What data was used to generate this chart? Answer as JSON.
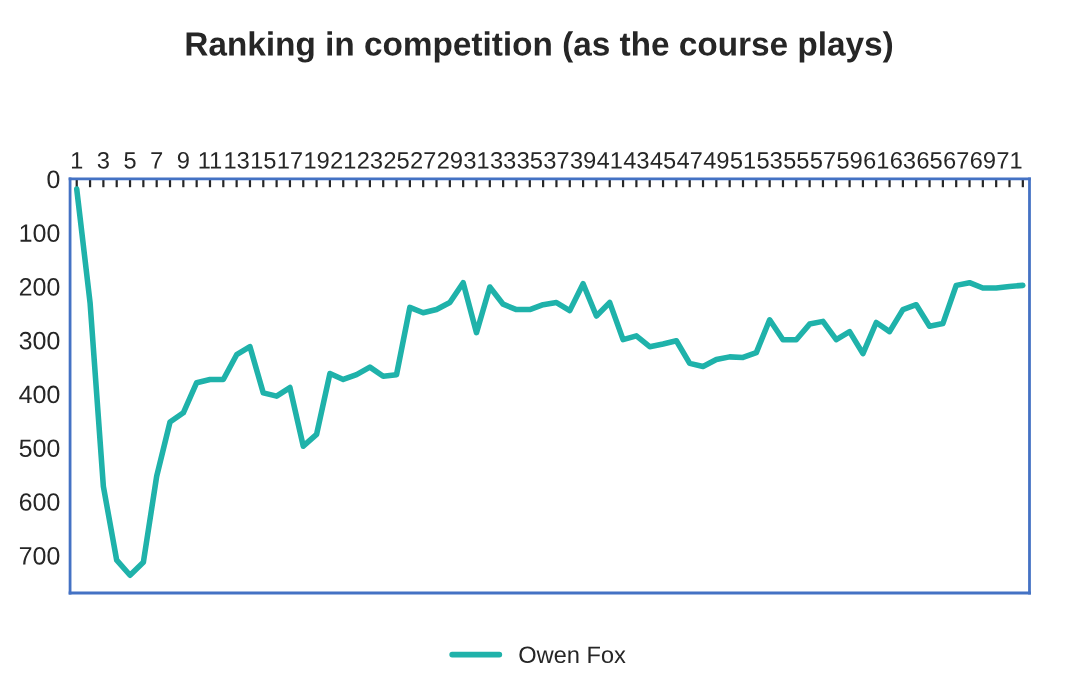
{
  "chart_data": {
    "type": "line",
    "title": "Ranking in competition (as the course plays)",
    "categories": [
      "1",
      null,
      "3",
      null,
      "5",
      null,
      "7",
      null,
      "9",
      null,
      "11",
      null,
      "13",
      null,
      "15",
      null,
      "17",
      null,
      "19",
      null,
      "21",
      null,
      "23",
      null,
      "25",
      null,
      "27",
      null,
      "29",
      null,
      "31",
      null,
      "33",
      null,
      "35",
      null,
      "37",
      null,
      "39",
      null,
      "41",
      null,
      "43",
      null,
      "45",
      null,
      "47",
      null,
      "49",
      null,
      "51",
      null,
      "53",
      null,
      "55",
      null,
      "57",
      null,
      "59",
      null,
      "61",
      null,
      "63",
      null,
      "65",
      null,
      "67",
      null,
      "69",
      null,
      "71",
      null
    ],
    "series": [
      {
        "name": "Owen Fox",
        "color": "#1fb2aa",
        "values": [
          19,
          230,
          572,
          709,
          737,
          713,
          553,
          452,
          435,
          379,
          373,
          373,
          327,
          312,
          398,
          404,
          388,
          497,
          475,
          362,
          373,
          364,
          350,
          367,
          364,
          239,
          249,
          243,
          230,
          193,
          286,
          201,
          233,
          243,
          243,
          234,
          230,
          245,
          195,
          255,
          230,
          299,
          292,
          312,
          307,
          301,
          343,
          349,
          336,
          331,
          332,
          323,
          262,
          299,
          299,
          270,
          265,
          299,
          284,
          325,
          267,
          284,
          243,
          234,
          274,
          269,
          198,
          193,
          203,
          203,
          200,
          198
        ]
      }
    ],
    "ylim": [
      770,
      0
    ],
    "yticks": [
      0,
      100,
      200,
      300,
      400,
      500,
      600,
      700
    ],
    "grid": false,
    "legend": "bottom",
    "marker": "none",
    "line_style": "solid"
  }
}
